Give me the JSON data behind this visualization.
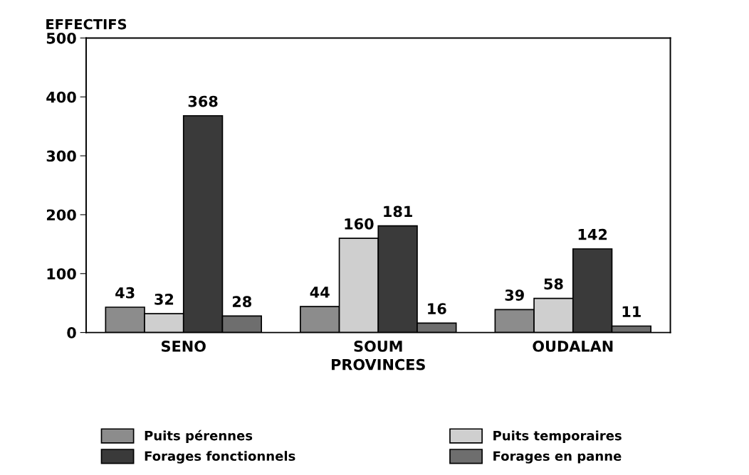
{
  "chart_data": {
    "type": "bar",
    "ylabel": "EFFECTIFS",
    "xlabel": "PROVINCES",
    "categories": [
      "SENO",
      "SOUM",
      "OUDALAN"
    ],
    "series": [
      {
        "name": "Puits pérennes",
        "color": "#8c8c8c",
        "values": [
          43,
          44,
          39
        ]
      },
      {
        "name": "Puits temporaires",
        "color": "#cfcfcf",
        "values": [
          32,
          160,
          58
        ]
      },
      {
        "name": "Forages fonctionnels",
        "color": "#3a3a3a",
        "values": [
          368,
          181,
          142
        ]
      },
      {
        "name": "Forages en panne",
        "color": "#6e6e6e",
        "values": [
          28,
          16,
          11
        ]
      }
    ],
    "ylim": [
      0,
      500
    ],
    "yticks": [
      0,
      100,
      200,
      300,
      400,
      500
    ],
    "data_labels": true,
    "grid": false,
    "legend": "bottom"
  }
}
